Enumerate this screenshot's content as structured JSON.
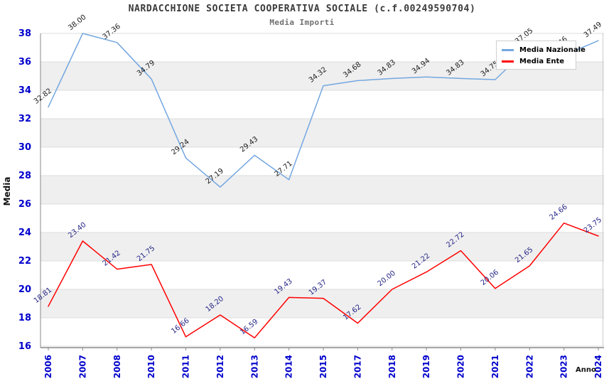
{
  "chart": {
    "title": "NARDACCHIONE SOCIETA COOPERATIVA SOCIALE (c.f.00249590704)",
    "subtitle": "Media Importi",
    "ylabel": "Media",
    "xlabel": "Anno"
  },
  "chart_data": {
    "type": "line",
    "title": "NARDACCHIONE SOCIETA COOPERATIVA SOCIALE (c.f.00249590704)",
    "subtitle": "Media Importi",
    "xlabel": "Anno",
    "ylabel": "Media",
    "categories": [
      "2006",
      "2007",
      "2008",
      "2010",
      "2011",
      "2012",
      "2013",
      "2014",
      "2015",
      "2017",
      "2018",
      "2019",
      "2020",
      "2021",
      "2022",
      "2023",
      "2024"
    ],
    "series": [
      {
        "name": "Media Nazionale",
        "color": "#74a7e0",
        "label_color": "#1c1c1c",
        "values": [
          32.82,
          38.0,
          37.36,
          34.79,
          29.24,
          27.19,
          29.43,
          27.71,
          34.32,
          34.68,
          34.83,
          34.94,
          34.83,
          34.75,
          37.05,
          36.46,
          37.49
        ],
        "note": "2021 and 2023 labels partially occluded by legend; values estimated from line position"
      },
      {
        "name": "Media Ente",
        "color": "#ff0000",
        "label_color": "#262687",
        "values": [
          18.81,
          23.4,
          21.42,
          21.75,
          16.66,
          18.2,
          16.59,
          19.43,
          19.37,
          17.62,
          20.0,
          21.22,
          22.72,
          20.06,
          21.65,
          24.66,
          23.75
        ]
      }
    ],
    "ylim": [
      16,
      38
    ],
    "ytick_step": 2,
    "grid": "alternating-horizontal-bands",
    "band_color": "#efefef",
    "gridline_color": "#dedede",
    "tick_label_color": "#0000cc",
    "legend_position": "top-right"
  }
}
